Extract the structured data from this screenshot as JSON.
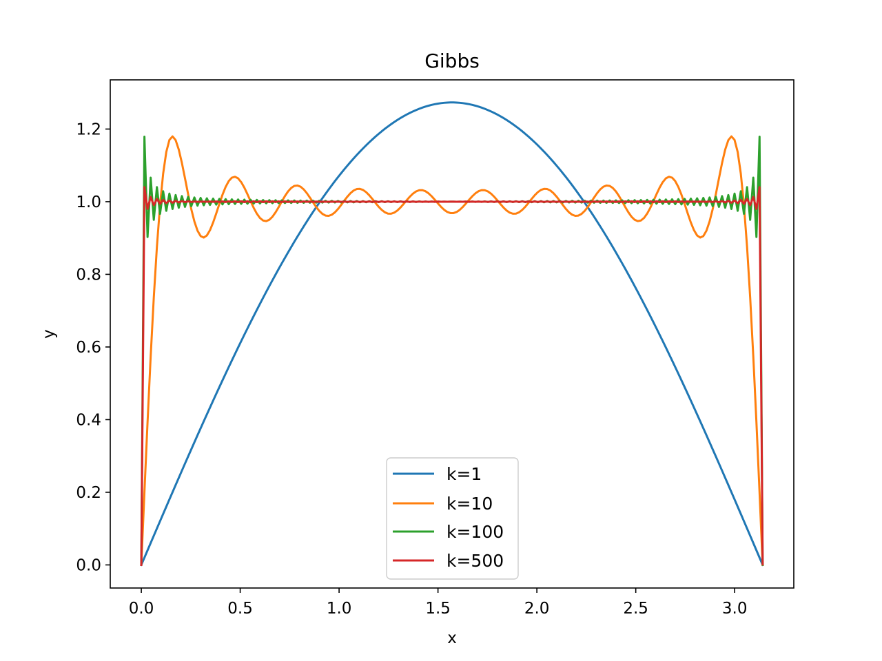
{
  "chart_data": {
    "type": "line",
    "title": "Gibbs",
    "xlabel": "x",
    "ylabel": "y",
    "xlim": [
      -0.157,
      3.299
    ],
    "ylim": [
      -0.0636,
      1.3354
    ],
    "xticks": [
      0.0,
      0.5,
      1.0,
      1.5,
      2.0,
      2.5,
      3.0
    ],
    "xtick_labels": [
      "0.0",
      "0.5",
      "1.0",
      "1.5",
      "2.0",
      "2.5",
      "3.0"
    ],
    "yticks": [
      0.0,
      0.2,
      0.4,
      0.6,
      0.8,
      1.0,
      1.2
    ],
    "ytick_labels": [
      "0.0",
      "0.2",
      "0.4",
      "0.6",
      "0.8",
      "1.0",
      "1.2"
    ],
    "grid": false,
    "legend_position": "lower center",
    "x_domain": [
      0,
      3.14159
    ],
    "series": [
      {
        "name": "k=1",
        "terms": 1,
        "color": "#1f77b4"
      },
      {
        "name": "k=10",
        "terms": 10,
        "color": "#ff7f0e"
      },
      {
        "name": "k=100",
        "terms": 100,
        "color": "#2ca02c"
      },
      {
        "name": "k=500",
        "terms": 500,
        "color": "#d62728"
      }
    ]
  }
}
